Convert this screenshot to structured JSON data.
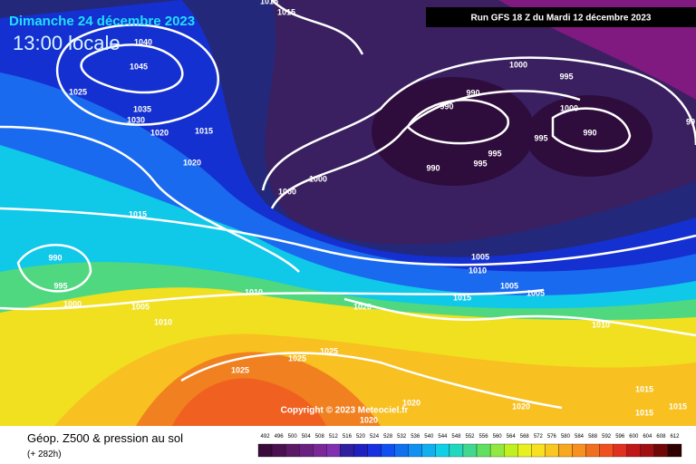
{
  "header": {
    "date": "Dimanche 24 décembre 2023",
    "time": "13:00 locale",
    "run": "Run GFS 18 Z du Mardi 12 décembre 2023"
  },
  "map": {
    "isobar_labels": [
      "1015",
      "1015",
      "1040",
      "1045",
      "1025",
      "1035",
      "1030",
      "1020",
      "1015",
      "1020",
      "1000",
      "995",
      "990",
      "990",
      "1000",
      "995",
      "990",
      "995",
      "995",
      "990",
      "1000",
      "1000",
      "1015",
      "990",
      "995",
      "1000",
      "1005",
      "1010",
      "1010",
      "1020",
      "1005",
      "1010",
      "1015",
      "1005",
      "1005",
      "1010",
      "1025",
      "1025",
      "1025",
      "1020",
      "1020",
      "1020",
      "1015",
      "1015",
      "1015",
      "99"
    ],
    "copyright": "Copyright © 2023 Meteociel.fr"
  },
  "legend": {
    "title": "Géop. Z500 & pression au sol",
    "subtitle": "(+ 282h)",
    "scale_labels": [
      492,
      496,
      500,
      504,
      508,
      512,
      516,
      520,
      524,
      528,
      532,
      536,
      540,
      544,
      548,
      552,
      556,
      560,
      564,
      568,
      572,
      576,
      580,
      584,
      588,
      592,
      596,
      600,
      604,
      608,
      612
    ],
    "scale_colors": [
      "#3a0a3a",
      "#4a1050",
      "#5a1a66",
      "#6a2080",
      "#7a2898",
      "#8030b0",
      "#3020a0",
      "#2020c0",
      "#1830e0",
      "#1050f0",
      "#1070f0",
      "#1090f0",
      "#10b0f0",
      "#10d0e8",
      "#20d8c0",
      "#40d890",
      "#60e060",
      "#90e840",
      "#c0f020",
      "#e8f020",
      "#f8e020",
      "#f8c820",
      "#f8a820",
      "#f89020",
      "#f07020",
      "#f05020",
      "#e03020",
      "#c01818",
      "#a01010",
      "#700808",
      "#300000"
    ]
  }
}
